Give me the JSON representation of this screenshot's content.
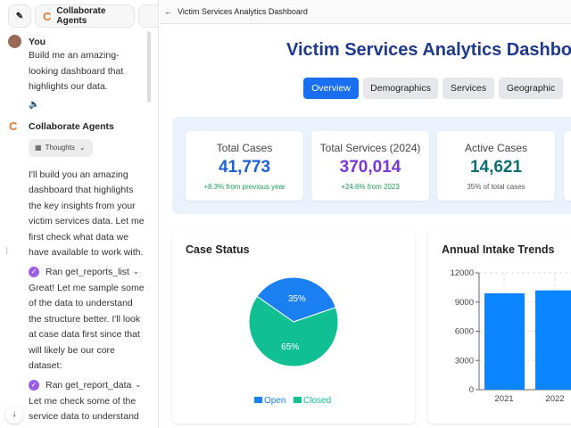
{
  "sidebar": {
    "agent_button": "Collaborate Agents",
    "user_name": "You",
    "user_message": "Build me an amazing-looking dashboard that highlights our data.",
    "agent_name": "Collaborate Agents",
    "thoughts_label": "Thoughts",
    "messages": [
      "I'll build you an amazing dashboard that highlights the key insights from your victim services data. Let me first check what data we have available to work with.",
      "Great! Let me sample some of the data to understand the structure better. I'll look at case data first since that will likely be our core dataset:",
      "Let me check some of the service data to understand"
    ],
    "tools": [
      "Ran get_reports_list",
      "Ran get_report_data"
    ]
  },
  "header": {
    "title": "Victim Services Analytics Dashboard"
  },
  "dashboard": {
    "title": "Victim Services Analytics Dashboard",
    "tabs": [
      "Overview",
      "Demographics",
      "Services",
      "Geographic"
    ],
    "active_tab": "Overview",
    "kpis": [
      {
        "label": "Total Cases",
        "value": "41,773",
        "sub": "+8.3% from previous year",
        "color": "#1d5fd6",
        "sub_color": "#1a9a55"
      },
      {
        "label": "Total Services (2024)",
        "value": "370,014",
        "sub": "+24.6% from 2023",
        "color": "#7b35d8",
        "sub_color": "#1a9a55"
      },
      {
        "label": "Active Cases",
        "value": "14,621",
        "sub": "35% of total cases",
        "color": "#0f6e73",
        "sub_color": "#555"
      }
    ]
  },
  "chart_data": [
    {
      "type": "pie",
      "title": "Case Status",
      "categories": [
        "Open",
        "Closed"
      ],
      "values": [
        35,
        65
      ],
      "labels": [
        "35%",
        "65%"
      ],
      "colors": [
        "#1a7ff0",
        "#10bf92"
      ],
      "legend": "bottom"
    },
    {
      "type": "bar",
      "title": "Annual Intake Trends",
      "categories": [
        "2021",
        "2022"
      ],
      "values": [
        9900,
        10200
      ],
      "yticks": [
        "0",
        "3000",
        "6000",
        "9000",
        "12000"
      ],
      "ylim": [
        0,
        12000
      ],
      "grid": true,
      "color": "#0a84ff"
    }
  ]
}
